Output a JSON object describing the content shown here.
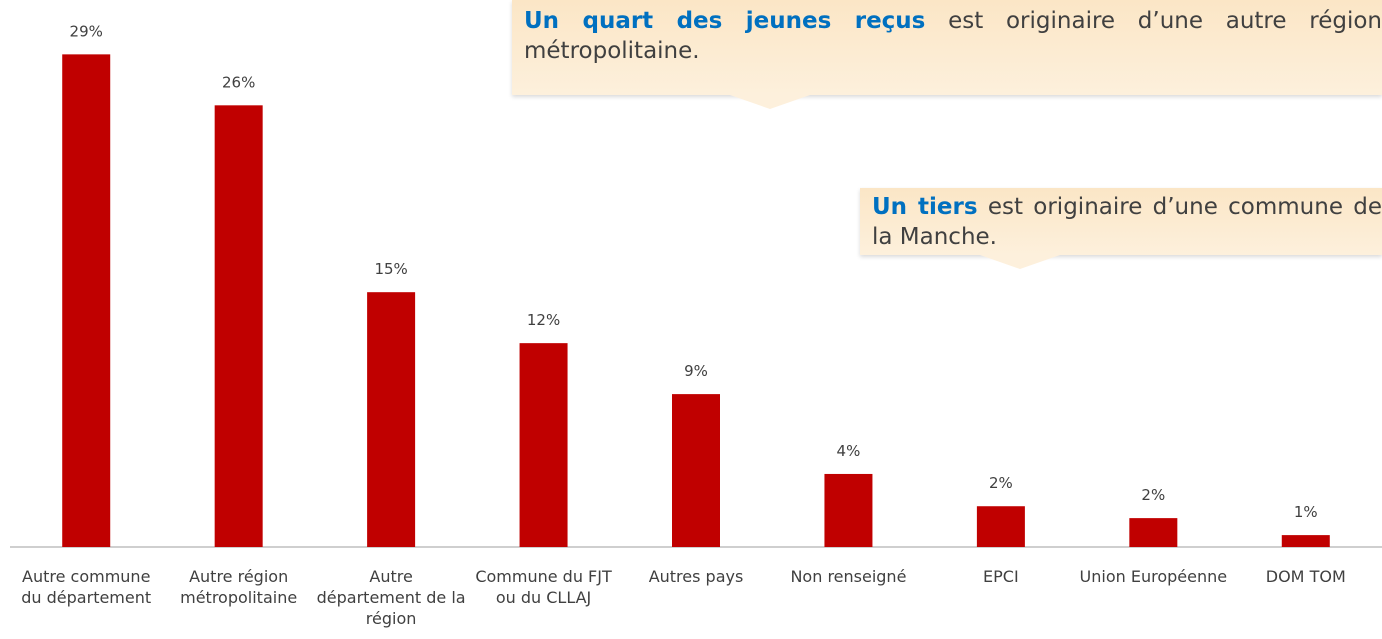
{
  "chart_data": {
    "type": "bar",
    "categories": [
      "Autre commune du département",
      "Autre région métropolitaine",
      "Autre département de la région",
      "Commune du FJT ou du CLLAJ",
      "Autres pays",
      "Non renseigné",
      "EPCI",
      "Union Européenne",
      "DOM TOM"
    ],
    "values": [
      29,
      26,
      15,
      12,
      9,
      4.3,
      2.4,
      1.7,
      0.7
    ],
    "value_labels": [
      "29%",
      "26%",
      "15%",
      "12%",
      "9%",
      "4%",
      "2%",
      "2%",
      "1%"
    ],
    "color": "#c00000",
    "ylim": [
      0,
      32.2
    ],
    "annotations": [
      {
        "bold": "Un quart des jeunes reçus",
        "text": "est originaire d’une autre région métropolitaine."
      },
      {
        "bold": "Un tiers",
        "text": "est originaire d’une commune de la Manche."
      }
    ]
  }
}
